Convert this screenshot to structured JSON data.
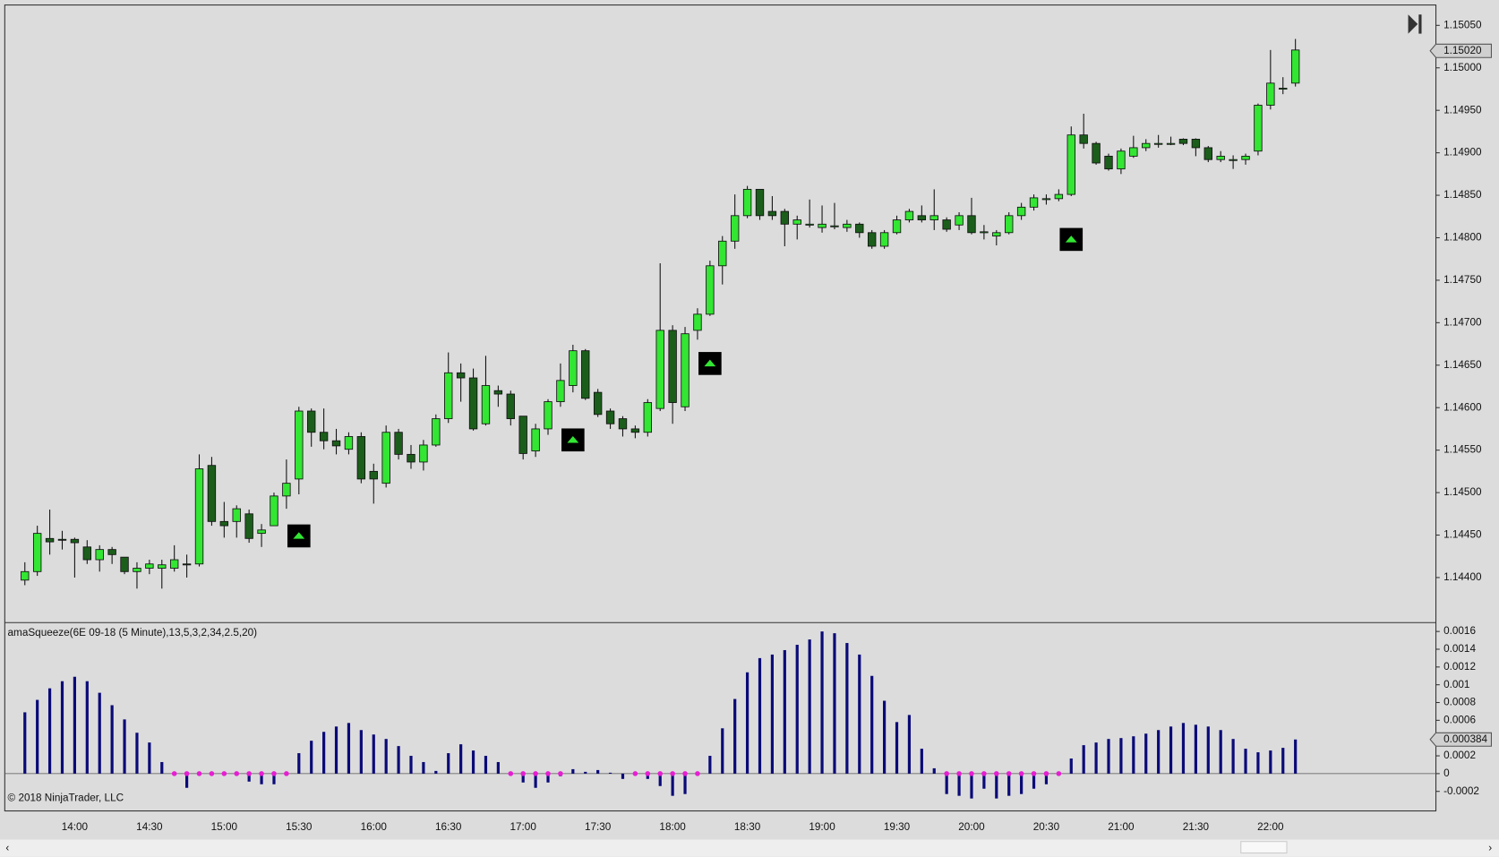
{
  "chart_data": [
    {
      "type": "candlestick",
      "categories": [
        null,
        null,
        null,
        null,
        "14:00",
        null,
        null,
        null,
        null,
        null,
        "14:30",
        null,
        null,
        null,
        null,
        null,
        "15:00",
        null,
        null,
        null,
        null,
        null,
        "15:30",
        null,
        null,
        null,
        null,
        null,
        "16:00",
        null,
        null,
        null,
        null,
        null,
        "16:30",
        null,
        null,
        null,
        null,
        null,
        "17:00",
        null,
        null,
        null,
        null,
        null,
        "17:30",
        null,
        null,
        null,
        null,
        null,
        "18:00",
        null,
        null,
        null,
        null,
        null,
        "18:30",
        null,
        null,
        null,
        null,
        null,
        "19:00",
        null,
        null,
        null,
        null,
        null,
        "19:30",
        null,
        null,
        null,
        null,
        null,
        "20:00",
        null,
        null,
        null,
        null,
        null,
        "20:30",
        null,
        null,
        null,
        null,
        null,
        "21:00",
        null,
        null,
        null,
        null,
        null,
        "21:30",
        null,
        null,
        null,
        null,
        null,
        "22:00",
        null,
        null
      ],
      "open": [
        1.14397,
        1.14407,
        1.14446,
        1.14445,
        1.14445,
        1.14436,
        1.14421,
        1.14433,
        1.14424,
        1.14407,
        1.14411,
        1.14411,
        1.14411,
        1.14416,
        1.14416,
        1.14532,
        1.14466,
        1.14466,
        1.14475,
        1.14452,
        1.14461,
        1.14496,
        1.14516,
        1.14596,
        1.14571,
        1.14561,
        1.14551,
        1.14566,
        1.14525,
        1.14511,
        1.14571,
        1.14545,
        1.14536,
        1.14556,
        1.14587,
        1.14641,
        1.14635,
        1.14581,
        1.1462,
        1.14616,
        1.1459,
        1.14549,
        1.14575,
        1.14607,
        1.14626,
        1.14667,
        1.14618,
        1.14596,
        1.14587,
        1.14575,
        1.14571,
        1.14599,
        1.14691,
        1.14601,
        1.14691,
        1.1471,
        1.14767,
        1.14796,
        1.14826,
        1.14857,
        1.14831,
        1.14831,
        1.14816,
        1.14816,
        1.14812,
        1.14814,
        1.14812,
        1.14816,
        1.14806,
        1.1479,
        1.14806,
        1.14821,
        1.14826,
        1.14821,
        1.14821,
        1.14815,
        1.14826,
        1.14807,
        1.14802,
        1.14806,
        1.14826,
        1.14836,
        1.14846,
        1.14846,
        1.14851,
        1.14921,
        1.14911,
        1.14896,
        1.14881,
        1.14896,
        1.14906,
        1.14911,
        1.14911,
        1.14916,
        1.14916,
        1.14906,
        1.14892,
        1.14892,
        1.14892,
        1.14902,
        1.14956,
        1.14976,
        1.14982
      ],
      "high": [
        1.14418,
        1.14461,
        1.1448,
        1.14455,
        1.14447,
        1.14444,
        1.14438,
        1.14436,
        1.14424,
        1.14418,
        1.14421,
        1.14421,
        1.14438,
        1.14427,
        1.14545,
        1.14542,
        1.14489,
        1.14485,
        1.1448,
        1.14463,
        1.145,
        1.14539,
        1.14601,
        1.14599,
        1.14599,
        1.14575,
        1.14571,
        1.14571,
        1.14534,
        1.14579,
        1.14575,
        1.14556,
        1.14562,
        1.14592,
        1.14665,
        1.14652,
        1.14646,
        1.14661,
        1.14626,
        1.1462,
        1.1459,
        1.14581,
        1.1461,
        1.14652,
        1.14674,
        1.14669,
        1.14622,
        1.14599,
        1.1459,
        1.14579,
        1.1461,
        1.1477,
        1.14697,
        1.14695,
        1.14717,
        1.14773,
        1.14802,
        1.14851,
        1.14861,
        1.14857,
        1.14849,
        1.14834,
        1.14826,
        1.14845,
        1.14838,
        1.14841,
        1.14821,
        1.14818,
        1.14809,
        1.14809,
        1.14826,
        1.14834,
        1.14838,
        1.14857,
        1.14824,
        1.1483,
        1.14847,
        1.14815,
        1.14809,
        1.1483,
        1.14841,
        1.14851,
        1.14851,
        1.14857,
        1.14931,
        1.14946,
        1.14913,
        1.14899,
        1.14905,
        1.1492,
        1.14916,
        1.14921,
        1.14919,
        1.14917,
        1.14917,
        1.14908,
        1.14902,
        1.14897,
        1.14899,
        1.14958,
        1.15021,
        1.14989,
        1.15034
      ],
      "low": [
        1.14391,
        1.14402,
        1.14427,
        1.14433,
        1.144,
        1.14416,
        1.14407,
        1.14416,
        1.14404,
        1.14387,
        1.14404,
        1.14387,
        1.14407,
        1.144,
        1.14413,
        1.14461,
        1.14447,
        1.14447,
        1.14441,
        1.14436,
        1.14461,
        1.14481,
        1.14498,
        1.14554,
        1.14551,
        1.14545,
        1.14545,
        1.14511,
        1.14487,
        1.14506,
        1.14539,
        1.14528,
        1.14526,
        1.14554,
        1.14582,
        1.14607,
        1.14573,
        1.14579,
        1.14601,
        1.14579,
        1.14539,
        1.14542,
        1.14568,
        1.14601,
        1.14618,
        1.14609,
        1.14589,
        1.14575,
        1.14566,
        1.14564,
        1.14566,
        1.14596,
        1.14581,
        1.14596,
        1.1468,
        1.14708,
        1.14745,
        1.14787,
        1.14823,
        1.14821,
        1.14821,
        1.1479,
        1.14798,
        1.14812,
        1.14806,
        1.1481,
        1.14807,
        1.148,
        1.14787,
        1.14787,
        1.14804,
        1.14818,
        1.14818,
        1.14809,
        1.14807,
        1.14809,
        1.14804,
        1.14798,
        1.14791,
        1.14804,
        1.14821,
        1.14832,
        1.14839,
        1.14843,
        1.14849,
        1.14905,
        1.14886,
        1.14879,
        1.14875,
        1.14894,
        1.14902,
        1.14906,
        1.14909,
        1.14909,
        1.14896,
        1.14889,
        1.14889,
        1.14881,
        1.14886,
        1.14897,
        1.14951,
        1.14969,
        1.14978
      ],
      "close": [
        1.14407,
        1.14452,
        1.14442,
        1.14444,
        1.14441,
        1.14421,
        1.14433,
        1.14427,
        1.14407,
        1.14411,
        1.14416,
        1.14415,
        1.14421,
        1.14415,
        1.14528,
        1.14466,
        1.14461,
        1.14481,
        1.14446,
        1.14456,
        1.14496,
        1.14511,
        1.14596,
        1.14571,
        1.14561,
        1.14555,
        1.14566,
        1.14516,
        1.14516,
        1.14571,
        1.14545,
        1.14536,
        1.14556,
        1.14587,
        1.14641,
        1.14635,
        1.14575,
        1.14626,
        1.14616,
        1.14587,
        1.14546,
        1.14575,
        1.14607,
        1.14632,
        1.14667,
        1.14611,
        1.14592,
        1.14581,
        1.14575,
        1.14571,
        1.14606,
        1.14691,
        1.14606,
        1.14687,
        1.1471,
        1.14767,
        1.14796,
        1.14826,
        1.14857,
        1.14826,
        1.14826,
        1.14816,
        1.14821,
        1.14816,
        1.14816,
        1.14814,
        1.14816,
        1.14806,
        1.1479,
        1.14806,
        1.14821,
        1.14831,
        1.14821,
        1.14826,
        1.1481,
        1.14826,
        1.14806,
        1.14807,
        1.14806,
        1.14826,
        1.14836,
        1.14847,
        1.14846,
        1.14851,
        1.14921,
        1.14911,
        1.14888,
        1.14881,
        1.14902,
        1.14906,
        1.14911,
        1.14911,
        1.14911,
        1.14911,
        1.14906,
        1.14892,
        1.14896,
        1.14892,
        1.14896,
        1.14956,
        1.14982,
        1.14976,
        1.15021
      ],
      "up_color": "#33e633",
      "down_color": "#1b5e1b",
      "signals": {
        "color": "#33e633",
        "values": [
          null,
          null,
          null,
          null,
          null,
          null,
          null,
          null,
          null,
          null,
          null,
          null,
          null,
          null,
          null,
          null,
          null,
          null,
          null,
          null,
          null,
          null,
          1.14449,
          null,
          null,
          null,
          null,
          null,
          null,
          null,
          null,
          null,
          null,
          null,
          null,
          null,
          null,
          null,
          null,
          null,
          null,
          null,
          null,
          null,
          1.14562,
          null,
          null,
          null,
          null,
          null,
          null,
          null,
          null,
          null,
          null,
          1.14652,
          null,
          null,
          null,
          null,
          null,
          null,
          null,
          null,
          null,
          null,
          null,
          null,
          null,
          null,
          null,
          null,
          null,
          null,
          null,
          null,
          null,
          null,
          null,
          null,
          null,
          null,
          null,
          null,
          1.14798,
          null,
          null,
          null,
          null,
          null,
          null,
          null,
          null,
          null,
          null,
          null,
          null,
          null,
          null,
          null,
          null,
          null,
          null
        ]
      },
      "ylim": [
        1.14347,
        1.15074
      ],
      "yticks": [
        {
          "value": 1.144,
          "label": "1.14400"
        },
        {
          "value": 1.1445,
          "label": "1.14450"
        },
        {
          "value": 1.145,
          "label": "1.14500"
        },
        {
          "value": 1.1455,
          "label": "1.14550"
        },
        {
          "value": 1.146,
          "label": "1.14600"
        },
        {
          "value": 1.1465,
          "label": "1.14650"
        },
        {
          "value": 1.147,
          "label": "1.14700"
        },
        {
          "value": 1.1475,
          "label": "1.14750"
        },
        {
          "value": 1.148,
          "label": "1.14800"
        },
        {
          "value": 1.1485,
          "label": "1.14850"
        },
        {
          "value": 1.149,
          "label": "1.14900"
        },
        {
          "value": 1.1495,
          "label": "1.14950"
        },
        {
          "value": 1.15,
          "label": "1.15000"
        },
        {
          "value": 1.1505,
          "label": "1.15050"
        }
      ],
      "last_price": {
        "value": 1.1502,
        "label": "1.15020"
      }
    },
    {
      "type": "bar",
      "title": "amaSqueeze(6E 09-18 (5 Minute),13,5,3,2,34,2.5,20)",
      "footnote": "© 2018 NinjaTrader, LLC",
      "color": "#0a0a78",
      "values": [
        0.00069,
        0.00083,
        0.00096,
        0.00104,
        0.00109,
        0.00104,
        0.00091,
        0.00077,
        0.00061,
        0.00046,
        0.00035,
        0.00013,
        -1e-05,
        -0.00016,
        -1e-05,
        1e-05,
        -1e-05,
        -1e-05,
        -9e-05,
        -0.00012,
        -0.00012,
        -1e-05,
        0.00023,
        0.00037,
        0.00047,
        0.00053,
        0.00057,
        0.00049,
        0.00044,
        0.00039,
        0.00031,
        0.0002,
        0.00013,
        3e-05,
        0.00023,
        0.00033,
        0.00026,
        0.0002,
        0.00013,
        -1e-05,
        -0.0001,
        -0.00016,
        -0.0001,
        -3e-05,
        5e-05,
        2e-05,
        4e-05,
        1e-05,
        -6e-05,
        -1e-05,
        -6e-05,
        -0.00014,
        -0.00025,
        -0.00023,
        -1e-05,
        0.0002,
        0.00051,
        0.00084,
        0.00114,
        0.0013,
        0.00134,
        0.00139,
        0.00145,
        0.00151,
        0.0016,
        0.00158,
        0.00147,
        0.00134,
        0.0011,
        0.00082,
        0.00058,
        0.00066,
        0.00028,
        6e-05,
        -0.00023,
        -0.00025,
        -0.00028,
        -0.00017,
        -0.00028,
        -0.00025,
        -0.00023,
        -0.00017,
        -0.00012,
        -1e-05,
        0.00017,
        0.00032,
        0.00035,
        0.00039,
        0.0004,
        0.00042,
        0.00045,
        0.00049,
        0.00053,
        0.00057,
        0.00055,
        0.00053,
        0.00049,
        0.00039,
        0.00028,
        0.00024,
        0.00026,
        0.00029,
        0.000384
      ],
      "dots": {
        "color": "#e61ed2",
        "values": [
          null,
          null,
          null,
          null,
          null,
          null,
          null,
          null,
          null,
          null,
          null,
          null,
          0,
          0,
          0,
          0,
          0,
          0,
          0,
          0,
          0,
          0,
          null,
          null,
          null,
          null,
          null,
          null,
          null,
          null,
          null,
          null,
          null,
          null,
          null,
          null,
          null,
          null,
          null,
          0,
          0,
          0,
          0,
          0,
          null,
          null,
          null,
          null,
          null,
          0,
          0,
          0,
          0,
          0,
          0,
          null,
          null,
          null,
          null,
          null,
          null,
          null,
          null,
          null,
          null,
          null,
          null,
          null,
          null,
          null,
          null,
          null,
          null,
          null,
          0,
          0,
          0,
          0,
          0,
          0,
          0,
          0,
          0,
          0,
          null,
          null,
          null,
          null,
          null,
          null,
          null,
          null,
          null,
          null,
          null,
          null,
          null,
          null,
          null,
          null,
          null,
          null,
          null
        ]
      },
      "ylim": [
        -0.00042,
        0.0017
      ],
      "yticks": [
        -0.0002,
        0,
        0.0002,
        0.0004,
        0.0006,
        0.0008,
        0.001,
        0.0012,
        0.0014,
        0.0016
      ],
      "last_value": 0.000384
    }
  ]
}
